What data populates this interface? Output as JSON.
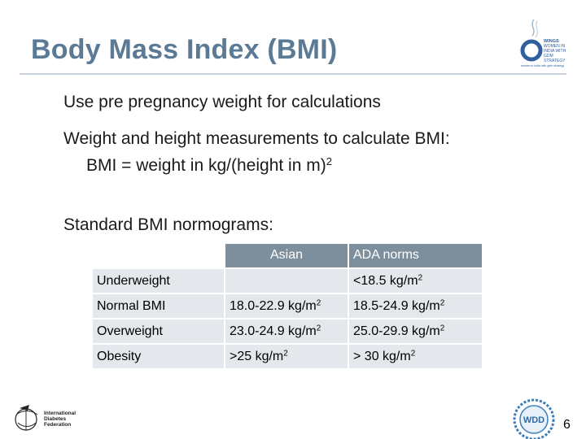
{
  "slide": {
    "title": "Body Mass Index (BMI)",
    "bullets": [
      "Use pre pregnancy weight for calculations",
      "Weight and height measurements to calculate BMI:",
      "BMI = weight in kg/(height in m)",
      "Standard BMI normograms:"
    ],
    "formula_exponent": "2",
    "page_number": "6"
  },
  "logos": {
    "top_right": {
      "icon": "wings-logo",
      "lines": [
        "WINGS",
        "WOMEN IN",
        "INDIA WITH",
        "GDM",
        "STRATEGY"
      ],
      "tagline": "women in india with gdm strategy"
    },
    "bottom_left": {
      "icon": "idf-logo",
      "lines": [
        "International",
        "Diabetes",
        "Federation"
      ]
    },
    "bottom_right": {
      "icon": "world-diabetes-day-logo",
      "text": "WDD"
    }
  },
  "table": {
    "headers": [
      "",
      "Asian",
      "ADA norms"
    ],
    "rows": [
      {
        "label": "Underweight",
        "asian": "",
        "ada": "<18.5 kg/m"
      },
      {
        "label": "Normal BMI",
        "asian": "18.0-22.9 kg/m",
        "ada": "18.5-24.9 kg/m"
      },
      {
        "label": "Overweight",
        "asian": "23.0-24.9 kg/m",
        "ada": "25.0-29.9 kg/m"
      },
      {
        "label": "Obesity",
        "asian": ">25 kg/m",
        "ada": "> 30 kg/m"
      }
    ],
    "unit_exponent": "2"
  },
  "colors": {
    "title": "#5b7a96",
    "header_bg": "#7d8e9c",
    "cell_bg": "#e4e8ed"
  }
}
